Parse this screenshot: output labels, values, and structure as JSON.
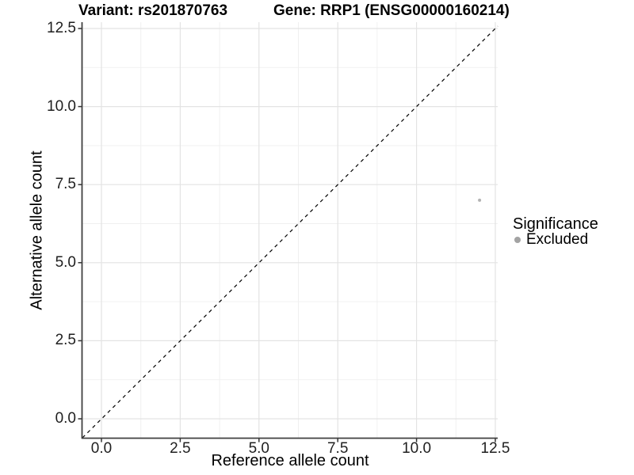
{
  "header": {
    "title_left": "Variant: rs201870763",
    "title_right": "Gene: RRP1 (ENSG00000160214)"
  },
  "chart_data": {
    "type": "scatter",
    "title": "Variant: rs201870763 / Gene: RRP1 (ENSG00000160214)",
    "xlabel": "Reference allele count",
    "ylabel": "Alternative allele count",
    "xlim": [
      -0.6,
      12.6
    ],
    "ylim": [
      -0.6,
      12.7
    ],
    "x_ticks": [
      0.0,
      2.5,
      5.0,
      7.5,
      10.0,
      12.5
    ],
    "y_ticks": [
      0.0,
      2.5,
      5.0,
      7.5,
      10.0,
      12.5
    ],
    "x_tick_labels": [
      "0.0",
      "2.5",
      "5.0",
      "7.5",
      "10.0",
      "12.5"
    ],
    "y_tick_labels": [
      "0.0",
      "2.5",
      "5.0",
      "7.5",
      "10.0",
      "12.5"
    ],
    "minor_ticks": [
      1.25,
      3.75,
      6.25,
      8.75,
      11.25
    ],
    "grid": "major and minor, light grey, on white panel",
    "series": [
      {
        "name": "Excluded",
        "marker": "circle",
        "color": "#b3b3b3",
        "points": [
          {
            "x": 12,
            "y": 7
          }
        ]
      }
    ],
    "reference_line": {
      "description": "identity line y = x across full panel",
      "style": "dashed",
      "color": "#000000"
    },
    "legend": {
      "position": "right",
      "title": "Significance",
      "entries": [
        {
          "label": "Excluded",
          "marker": "circle",
          "color": "#a3a3a3"
        }
      ]
    }
  },
  "colors": {
    "background": "#ffffff",
    "grid_major": "#e3e3e3",
    "grid_minor": "#efefef",
    "axis_line": "#404040",
    "tick_mark": "#333333",
    "tick_text": "#1f1f1f",
    "point": "#b3b3b3",
    "legend_dot": "#a3a3a3",
    "dashed_line": "#000000"
  }
}
